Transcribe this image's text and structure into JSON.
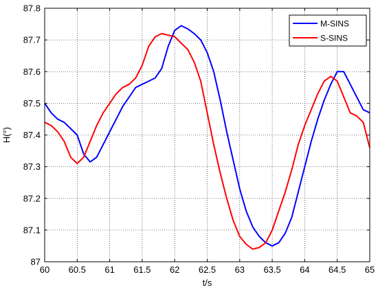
{
  "chart_data": {
    "type": "line",
    "title": "",
    "xlabel": "t/s",
    "ylabel": "H(°)",
    "xlim": [
      60,
      65
    ],
    "ylim": [
      87,
      87.8
    ],
    "xticks": [
      "60",
      "60.5",
      "61",
      "61.5",
      "62",
      "62.5",
      "63",
      "63.5",
      "64",
      "64.5",
      "65"
    ],
    "yticks": [
      "87",
      "87.1",
      "87.2",
      "87.3",
      "87.4",
      "87.5",
      "87.6",
      "87.7",
      "87.8"
    ],
    "grid": true,
    "legend_position": "top-right",
    "series": [
      {
        "name": "M-SINS",
        "color": "#0000ff",
        "x": [
          60.0,
          60.1,
          60.2,
          60.3,
          60.4,
          60.5,
          60.6,
          60.7,
          60.8,
          60.9,
          61.0,
          61.1,
          61.2,
          61.3,
          61.4,
          61.5,
          61.6,
          61.7,
          61.8,
          61.9,
          62.0,
          62.1,
          62.2,
          62.3,
          62.4,
          62.5,
          62.6,
          62.7,
          62.8,
          62.9,
          63.0,
          63.1,
          63.2,
          63.3,
          63.4,
          63.5,
          63.6,
          63.7,
          63.8,
          63.9,
          64.0,
          64.1,
          64.2,
          64.3,
          64.4,
          64.5,
          64.6,
          64.7,
          64.8,
          64.9,
          65.0
        ],
        "y": [
          87.5,
          87.47,
          87.45,
          87.44,
          87.42,
          87.4,
          87.34,
          87.315,
          87.33,
          87.37,
          87.41,
          87.45,
          87.49,
          87.52,
          87.55,
          87.56,
          87.57,
          87.58,
          87.61,
          87.68,
          87.73,
          87.745,
          87.735,
          87.72,
          87.7,
          87.66,
          87.6,
          87.51,
          87.41,
          87.32,
          87.23,
          87.16,
          87.11,
          87.08,
          87.06,
          87.05,
          87.06,
          87.09,
          87.14,
          87.22,
          87.3,
          87.38,
          87.45,
          87.51,
          87.56,
          87.6,
          87.6,
          87.56,
          87.52,
          87.48,
          87.47
        ]
      },
      {
        "name": "S-SINS",
        "color": "#ff0000",
        "x": [
          60.0,
          60.1,
          60.2,
          60.3,
          60.4,
          60.5,
          60.6,
          60.7,
          60.8,
          60.9,
          61.0,
          61.1,
          61.2,
          61.3,
          61.4,
          61.5,
          61.6,
          61.7,
          61.8,
          61.9,
          62.0,
          62.1,
          62.2,
          62.3,
          62.4,
          62.5,
          62.6,
          62.7,
          62.8,
          62.9,
          63.0,
          63.1,
          63.2,
          63.3,
          63.4,
          63.5,
          63.6,
          63.7,
          63.8,
          63.9,
          64.0,
          64.1,
          64.2,
          64.3,
          64.4,
          64.5,
          64.6,
          64.7,
          64.8,
          64.9,
          65.0
        ],
        "y": [
          87.44,
          87.43,
          87.41,
          87.38,
          87.33,
          87.31,
          87.33,
          87.38,
          87.43,
          87.47,
          87.5,
          87.53,
          87.55,
          87.56,
          87.58,
          87.62,
          87.68,
          87.71,
          87.72,
          87.715,
          87.71,
          87.69,
          87.67,
          87.63,
          87.57,
          87.47,
          87.37,
          87.28,
          87.2,
          87.13,
          87.08,
          87.055,
          87.04,
          87.045,
          87.06,
          87.1,
          87.16,
          87.22,
          87.29,
          87.37,
          87.43,
          87.48,
          87.53,
          87.57,
          87.585,
          87.57,
          87.52,
          87.47,
          87.46,
          87.44,
          87.36
        ]
      }
    ]
  }
}
